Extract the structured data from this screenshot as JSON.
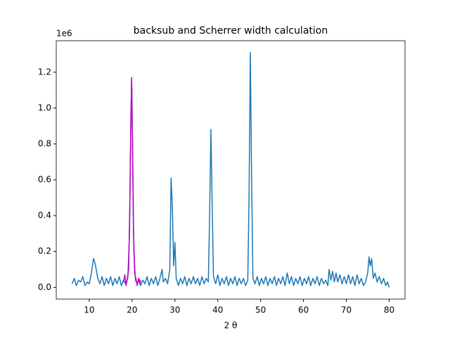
{
  "chart_data": {
    "type": "line",
    "title": "backsub and Scherrer width calculation",
    "xlabel": "2 θ",
    "y_offset_label": "1e6",
    "xlim": [
      2.3,
      83.7
    ],
    "ylim": [
      -0.0655,
      1.3755
    ],
    "xticks": [
      10,
      20,
      30,
      40,
      50,
      60,
      70,
      80
    ],
    "yticks": [
      {
        "value": 0,
        "label": "0.0"
      },
      {
        "value": 0.2,
        "label": "0.2"
      },
      {
        "value": 0.4,
        "label": "0.4"
      },
      {
        "value": 0.6,
        "label": "0.6"
      },
      {
        "value": 0.8,
        "label": "0.8"
      },
      {
        "value": 1.0,
        "label": "1.0"
      },
      {
        "value": 1.2,
        "label": "1.2"
      }
    ],
    "series": [
      {
        "color": "#1f77b4",
        "x": [
          6,
          6.5,
          7,
          7.5,
          8,
          8.5,
          9,
          9.5,
          10,
          10.5,
          11,
          11.3,
          11.7,
          12,
          12.5,
          13,
          13.5,
          14,
          14.5,
          15,
          15.5,
          16,
          16.5,
          17,
          17.5,
          18,
          18.5,
          19,
          19.4,
          19.7,
          19.9,
          20.1,
          20.4,
          20.8,
          21.2,
          21.6,
          22,
          22.5,
          23,
          23.5,
          24,
          24.5,
          25,
          25.5,
          26,
          26.5,
          27,
          27.3,
          27.8,
          28.3,
          28.8,
          29.1,
          29.4,
          29.7,
          30,
          30.3,
          30.8,
          31.3,
          31.8,
          32.3,
          32.8,
          33.3,
          33.8,
          34.3,
          34.8,
          35.3,
          35.8,
          36.3,
          36.8,
          37.3,
          37.8,
          38.1,
          38.4,
          38.7,
          39,
          39.5,
          40,
          40.5,
          41,
          41.5,
          42,
          42.5,
          43,
          43.5,
          44,
          44.5,
          45,
          45.5,
          46,
          46.5,
          47,
          47.3,
          47.6,
          47.9,
          48.2,
          48.7,
          49.2,
          49.7,
          50.2,
          50.7,
          51.2,
          51.7,
          52.2,
          52.7,
          53.2,
          53.7,
          54.2,
          54.7,
          55.2,
          55.7,
          56.2,
          56.7,
          57.2,
          57.7,
          58.2,
          58.7,
          59.2,
          59.7,
          60.2,
          60.7,
          61.2,
          61.7,
          62.2,
          62.7,
          63.2,
          63.7,
          64.2,
          64.7,
          65.2,
          65.7,
          66,
          66.4,
          66.8,
          67.2,
          67.6,
          68,
          68.5,
          69,
          69.5,
          70,
          70.5,
          71,
          71.5,
          72,
          72.5,
          73,
          73.5,
          74,
          74.5,
          75,
          75.3,
          75.6,
          75.9,
          76.3,
          76.7,
          77.2,
          77.7,
          78.2,
          78.7,
          79.2,
          79.6,
          80
        ],
        "values": [
          0.02,
          0.05,
          0.01,
          0.04,
          0.03,
          0.06,
          0.01,
          0.03,
          0.02,
          0.08,
          0.16,
          0.14,
          0.09,
          0.05,
          0.02,
          0.06,
          0.01,
          0.05,
          0.02,
          0.06,
          0.01,
          0.05,
          0.02,
          0.06,
          0.01,
          0.04,
          0.02,
          0.05,
          0.3,
          0.9,
          1.17,
          0.8,
          0.2,
          0.04,
          0.02,
          0.05,
          0.01,
          0.04,
          0.02,
          0.06,
          0.01,
          0.05,
          0.02,
          0.06,
          0.01,
          0.05,
          0.1,
          0.03,
          0.05,
          0.02,
          0.1,
          0.61,
          0.45,
          0.12,
          0.25,
          0.05,
          0.01,
          0.05,
          0.02,
          0.06,
          0.01,
          0.05,
          0.02,
          0.06,
          0.02,
          0.05,
          0.01,
          0.06,
          0.02,
          0.05,
          0.03,
          0.4,
          0.88,
          0.45,
          0.06,
          0.02,
          0.07,
          0.01,
          0.05,
          0.02,
          0.06,
          0.01,
          0.05,
          0.02,
          0.06,
          0.01,
          0.05,
          0.02,
          0.05,
          0.01,
          0.04,
          0.5,
          1.31,
          0.6,
          0.05,
          0.02,
          0.06,
          0.01,
          0.05,
          0.02,
          0.06,
          0.01,
          0.05,
          0.02,
          0.06,
          0.01,
          0.05,
          0.02,
          0.06,
          0.01,
          0.08,
          0.02,
          0.06,
          0.01,
          0.05,
          0.02,
          0.06,
          0.01,
          0.05,
          0.02,
          0.06,
          0.01,
          0.05,
          0.02,
          0.06,
          0.01,
          0.05,
          0.02,
          0.04,
          0.01,
          0.1,
          0.04,
          0.09,
          0.03,
          0.08,
          0.03,
          0.07,
          0.02,
          0.06,
          0.02,
          0.07,
          0.02,
          0.06,
          0.01,
          0.07,
          0.02,
          0.05,
          0.01,
          0.03,
          0.08,
          0.17,
          0.12,
          0.16,
          0.05,
          0.08,
          0.03,
          0.06,
          0.02,
          0.05,
          0.01,
          0.03,
          0
        ]
      },
      {
        "color": "#bf00bf",
        "x": [
          18,
          18.3,
          18.6,
          18.9,
          19.2,
          19.5,
          19.7,
          19.9,
          20.1,
          20.3,
          20.6,
          20.9,
          21.2,
          21.5,
          21.8,
          22
        ],
        "values": [
          0.03,
          0.07,
          0.01,
          0.05,
          0.1,
          0.5,
          0.9,
          1.17,
          0.8,
          0.35,
          0.08,
          0.05,
          0.01,
          0.05,
          0.02,
          0.04
        ]
      }
    ]
  }
}
